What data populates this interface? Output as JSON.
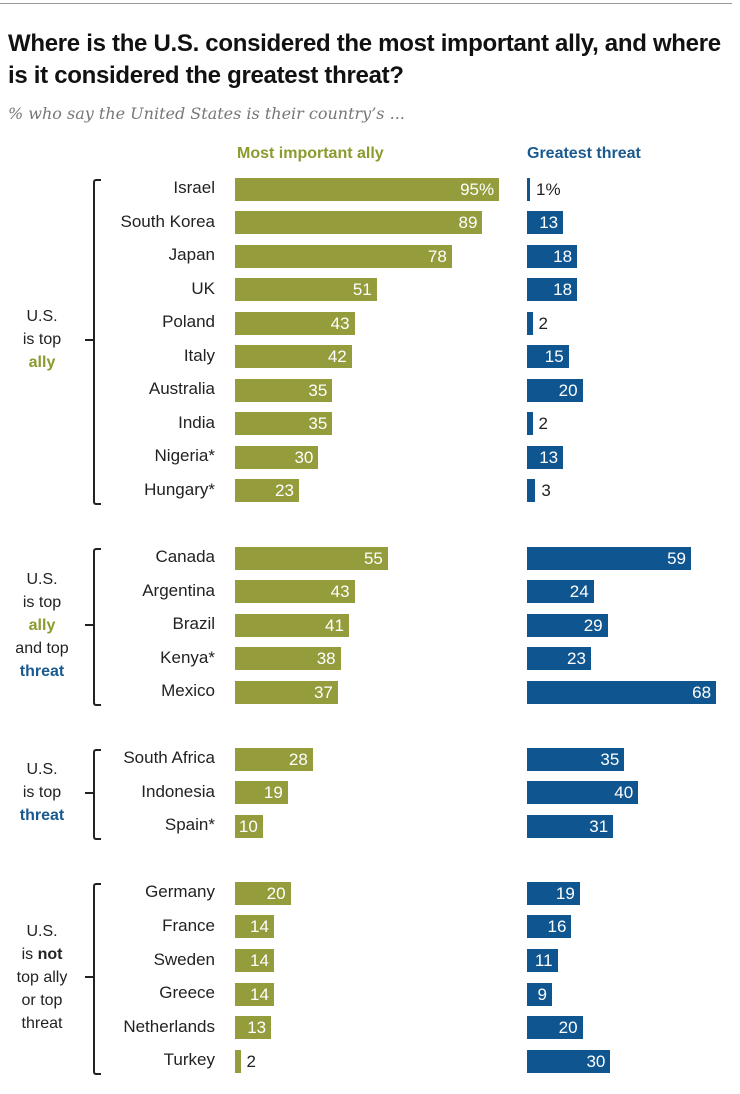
{
  "chart_data": {
    "type": "bar",
    "title": "Where is the U.S. considered the most important ally, and where is it considered the greatest threat?",
    "subtitle": "% who say the United States is their country’s ...",
    "series_labels": {
      "ally": "Most important ally",
      "threat": "Greatest threat"
    },
    "colors": {
      "ally": "#949c3c",
      "threat": "#0f5690",
      "ally_text": "#8c9a2e",
      "threat_text": "#1a5a8f"
    },
    "xlim": [
      0,
      100
    ],
    "groups": [
      {
        "label_lines": [
          [
            {
              "t": "U.S."
            }
          ],
          [
            {
              "t": "is top"
            }
          ],
          [
            {
              "t": "ally",
              "c": "ally"
            }
          ]
        ],
        "rows": [
          {
            "country": "Israel",
            "ally": 95,
            "ally_label": "95%",
            "threat": 1,
            "threat_label": "1%"
          },
          {
            "country": "South Korea",
            "ally": 89,
            "ally_label": "89",
            "threat": 13,
            "threat_label": "13"
          },
          {
            "country": "Japan",
            "ally": 78,
            "ally_label": "78",
            "threat": 18,
            "threat_label": "18"
          },
          {
            "country": "UK",
            "ally": 51,
            "ally_label": "51",
            "threat": 18,
            "threat_label": "18"
          },
          {
            "country": "Poland",
            "ally": 43,
            "ally_label": "43",
            "threat": 2,
            "threat_label": "2"
          },
          {
            "country": "Italy",
            "ally": 42,
            "ally_label": "42",
            "threat": 15,
            "threat_label": "15"
          },
          {
            "country": "Australia",
            "ally": 35,
            "ally_label": "35",
            "threat": 20,
            "threat_label": "20"
          },
          {
            "country": "India",
            "ally": 35,
            "ally_label": "35",
            "threat": 2,
            "threat_label": "2"
          },
          {
            "country": "Nigeria*",
            "ally": 30,
            "ally_label": "30",
            "threat": 13,
            "threat_label": "13"
          },
          {
            "country": "Hungary*",
            "ally": 23,
            "ally_label": "23",
            "threat": 3,
            "threat_label": "3"
          }
        ]
      },
      {
        "label_lines": [
          [
            {
              "t": "U.S."
            }
          ],
          [
            {
              "t": "is top"
            }
          ],
          [
            {
              "t": "ally",
              "c": "ally"
            }
          ],
          [
            {
              "t": "and top"
            }
          ],
          [
            {
              "t": "threat",
              "c": "threat"
            }
          ]
        ],
        "rows": [
          {
            "country": "Canada",
            "ally": 55,
            "ally_label": "55",
            "threat": 59,
            "threat_label": "59"
          },
          {
            "country": "Argentina",
            "ally": 43,
            "ally_label": "43",
            "threat": 24,
            "threat_label": "24"
          },
          {
            "country": "Brazil",
            "ally": 41,
            "ally_label": "41",
            "threat": 29,
            "threat_label": "29"
          },
          {
            "country": "Kenya*",
            "ally": 38,
            "ally_label": "38",
            "threat": 23,
            "threat_label": "23"
          },
          {
            "country": "Mexico",
            "ally": 37,
            "ally_label": "37",
            "threat": 68,
            "threat_label": "68"
          }
        ]
      },
      {
        "label_lines": [
          [
            {
              "t": "U.S."
            }
          ],
          [
            {
              "t": "is top"
            }
          ],
          [
            {
              "t": "threat",
              "c": "threat"
            }
          ]
        ],
        "rows": [
          {
            "country": "South Africa",
            "ally": 28,
            "ally_label": "28",
            "threat": 35,
            "threat_label": "35"
          },
          {
            "country": "Indonesia",
            "ally": 19,
            "ally_label": "19",
            "threat": 40,
            "threat_label": "40"
          },
          {
            "country": "Spain*",
            "ally": 10,
            "ally_label": "10",
            "threat": 31,
            "threat_label": "31"
          }
        ]
      },
      {
        "label_lines": [
          [
            {
              "t": "U.S."
            }
          ],
          [
            {
              "t": "is "
            },
            {
              "t": "not",
              "b": true
            }
          ],
          [
            {
              "t": "top ally"
            }
          ],
          [
            {
              "t": "or top"
            }
          ],
          [
            {
              "t": "threat"
            }
          ]
        ],
        "rows": [
          {
            "country": "Germany",
            "ally": 20,
            "ally_label": "20",
            "threat": 19,
            "threat_label": "19"
          },
          {
            "country": "France",
            "ally": 14,
            "ally_label": "14",
            "threat": 16,
            "threat_label": "16"
          },
          {
            "country": "Sweden",
            "ally": 14,
            "ally_label": "14",
            "threat": 11,
            "threat_label": "11"
          },
          {
            "country": "Greece",
            "ally": 14,
            "ally_label": "14",
            "threat": 9,
            "threat_label": "9"
          },
          {
            "country": "Netherlands",
            "ally": 13,
            "ally_label": "13",
            "threat": 20,
            "threat_label": "20"
          },
          {
            "country": "Turkey",
            "ally": 2,
            "ally_label": "2",
            "threat": 30,
            "threat_label": "30"
          }
        ]
      }
    ]
  }
}
